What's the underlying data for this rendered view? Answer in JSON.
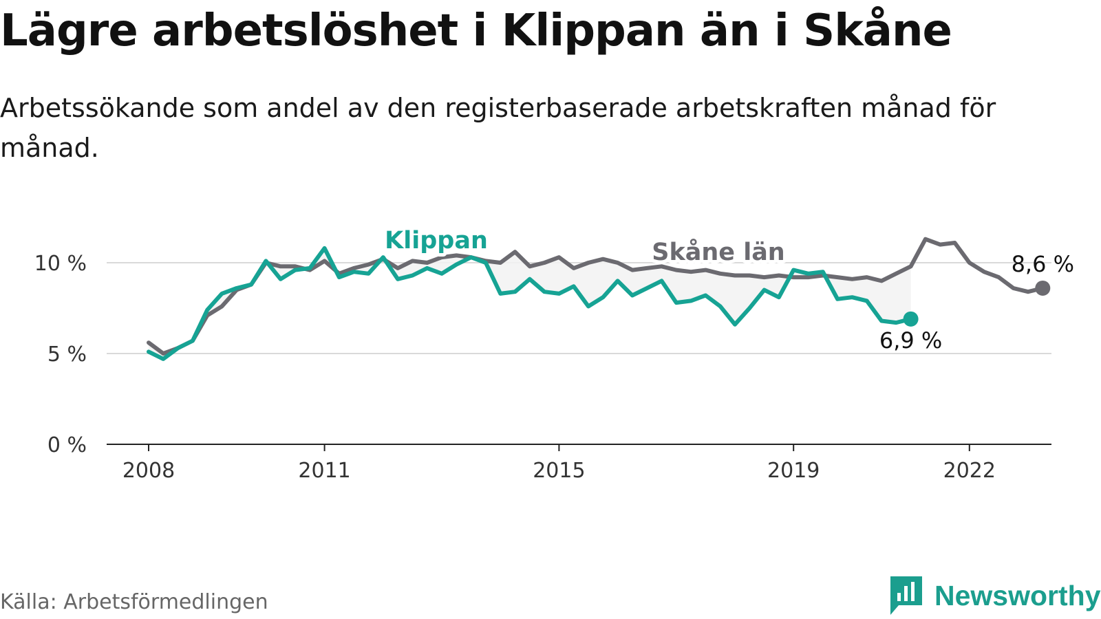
{
  "title": "Lägre arbetslöshet i Klippan än i Skåne",
  "subtitle": "Arbetssökande som andel av den registerbaserade arbetskraften månad för månad.",
  "source": "Källa: Arbetsförmedlingen",
  "brand": {
    "name": "Newsworthy",
    "icon": "newsworthy-logo-icon",
    "color": "#1b9e8e"
  },
  "chart_data": {
    "type": "line",
    "title": "Lägre arbetslöshet i Klippan än i Skåne",
    "xlabel": "",
    "ylabel": "",
    "xlim": [
      2008,
      2023.5
    ],
    "ylim": [
      0,
      10
    ],
    "x_ticks": [
      {
        "value": 2008.0,
        "label": "2008"
      },
      {
        "value": 2011.0,
        "label": "2011"
      },
      {
        "value": 2015.0,
        "label": "2015"
      },
      {
        "value": 2019.0,
        "label": "2019"
      },
      {
        "value": 2022.0,
        "label": "2022"
      }
    ],
    "y_ticks": [
      {
        "value": 0,
        "label": "0 %"
      },
      {
        "value": 5,
        "label": "5 %"
      },
      {
        "value": 10,
        "label": "10 %"
      }
    ],
    "x_start": 2008.0,
    "x_step": 0.25,
    "series": [
      {
        "name": "Skåne län",
        "color": "#6b6a70",
        "values": [
          5.6,
          5.0,
          5.3,
          5.7,
          7.1,
          7.6,
          8.5,
          8.8,
          10.0,
          9.8,
          9.8,
          9.6,
          10.1,
          9.4,
          9.7,
          9.9,
          10.2,
          9.7,
          10.1,
          10.0,
          10.3,
          10.4,
          10.3,
          10.1,
          10.0,
          10.6,
          9.8,
          10.0,
          10.3,
          9.7,
          10.0,
          10.2,
          10.0,
          9.6,
          9.7,
          9.8,
          9.6,
          9.5,
          9.6,
          9.4,
          9.3,
          9.3,
          9.2,
          9.3,
          9.2,
          9.2,
          9.3,
          9.2,
          9.1,
          9.2,
          9.0,
          9.4,
          9.8,
          11.3,
          11.0,
          11.1,
          10.0,
          9.5,
          9.2,
          8.6,
          8.4,
          8.6
        ],
        "end_label": "8,6 %"
      },
      {
        "name": "Klippan",
        "color": "#16a394",
        "values": [
          5.1,
          4.7,
          5.3,
          5.7,
          7.4,
          8.3,
          8.6,
          8.8,
          10.1,
          9.1,
          9.6,
          9.7,
          10.8,
          9.2,
          9.5,
          9.4,
          10.3,
          9.1,
          9.3,
          9.7,
          9.4,
          9.9,
          10.3,
          10.0,
          8.3,
          8.4,
          9.1,
          8.4,
          8.3,
          8.7,
          7.6,
          8.1,
          9.0,
          8.2,
          8.6,
          9.0,
          7.8,
          7.9,
          8.2,
          7.6,
          6.6,
          7.5,
          8.5,
          8.1,
          9.6,
          9.4,
          9.5,
          8.0,
          8.1,
          7.9,
          6.8,
          6.7,
          6.9
        ],
        "end_label": "6,9 %"
      }
    ],
    "annotations": [
      {
        "text": "Klippan",
        "series": "Klippan"
      },
      {
        "text": "Skåne län",
        "series": "Skåne län"
      }
    ],
    "shaded_between_series": true
  }
}
